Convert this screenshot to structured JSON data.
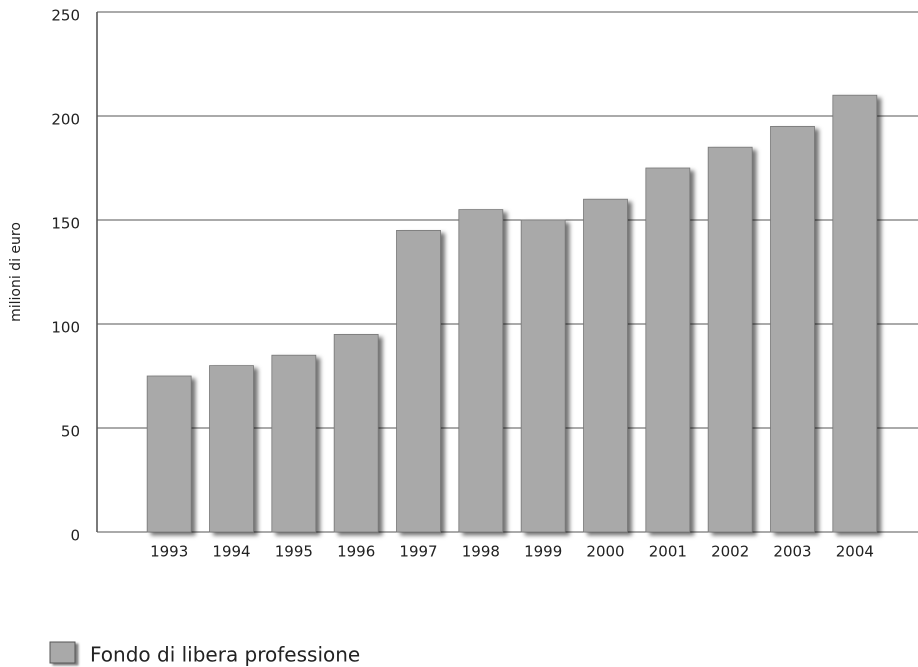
{
  "chart_data": {
    "type": "bar",
    "y_label": "milioni di euro",
    "categories": [
      "1993",
      "1994",
      "1995",
      "1996",
      "1997",
      "1998",
      "1999",
      "2000",
      "2001",
      "2002",
      "2003",
      "2004"
    ],
    "series": [
      {
        "name": "Fondo di libera professione",
        "color": "#a9a9a9",
        "values": [
          75,
          80,
          85,
          95,
          145,
          155,
          150,
          160,
          175,
          185,
          195,
          210
        ]
      }
    ],
    "ylim": [
      0,
      250
    ],
    "yticks": [
      0,
      50,
      100,
      150,
      200,
      250
    ],
    "grid": true,
    "legend": "bottom-left"
  }
}
